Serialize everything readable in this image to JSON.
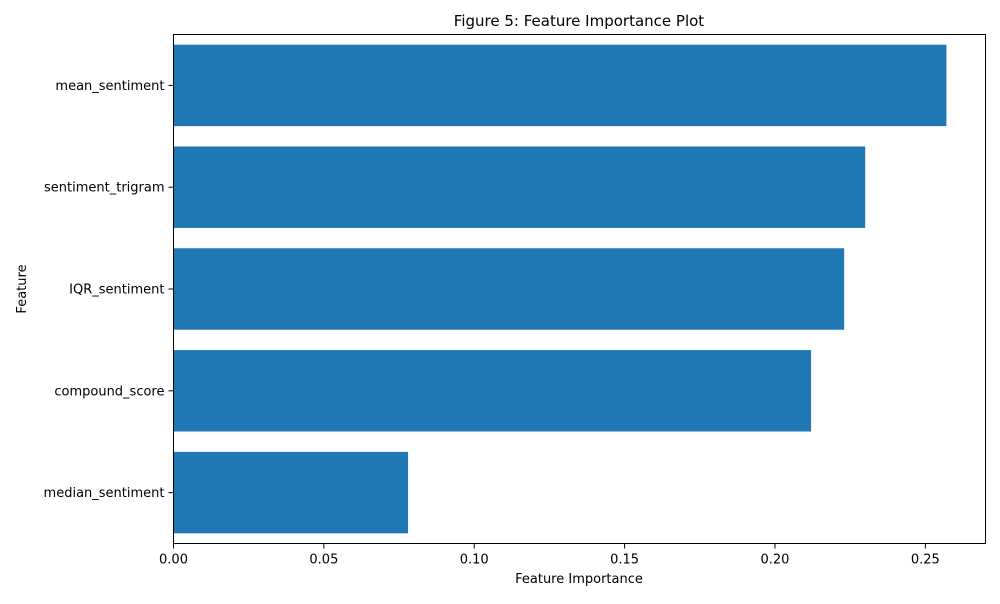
{
  "chart_data": {
    "type": "bar",
    "orientation": "horizontal",
    "title": "Figure 5: Feature Importance Plot",
    "xlabel": "Feature Importance",
    "ylabel": "Feature",
    "categories": [
      "mean_sentiment",
      "sentiment_trigram",
      "IQR_sentiment",
      "compound_score",
      "median_sentiment"
    ],
    "values": [
      0.257,
      0.23,
      0.223,
      0.212,
      0.078
    ],
    "xlim": [
      0,
      0.27
    ],
    "xticks": [
      0.0,
      0.05,
      0.1,
      0.15,
      0.2,
      0.25
    ],
    "xtick_labels": [
      "0.00",
      "0.05",
      "0.10",
      "0.15",
      "0.20",
      "0.25"
    ],
    "bar_color": "#1f77b4",
    "grid": false,
    "legend": "none"
  }
}
